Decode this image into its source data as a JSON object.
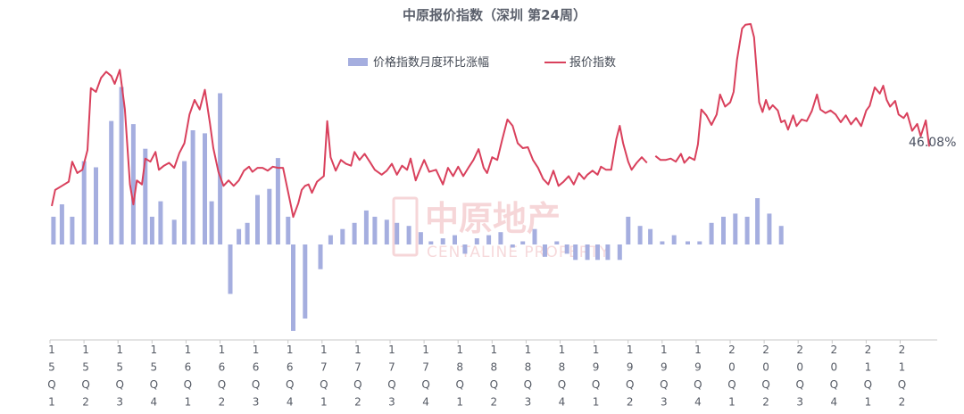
{
  "chart_data": {
    "type": "bar+line",
    "title": "中原报价指数（深圳 第24周）",
    "legend": {
      "position": "top-center",
      "items": [
        {
          "name": "价格指数月度环比涨幅",
          "kind": "bar",
          "color": "#a5aedf"
        },
        {
          "name": "报价指数",
          "kind": "line",
          "color": "#d9405c"
        }
      ]
    },
    "end_label": "46.08%",
    "watermark": {
      "cn": "中原地产",
      "en": "CENTALINE PROPERTY"
    },
    "quarters": [
      {
        "label": [
          "1",
          "5",
          "Q",
          "1"
        ],
        "x": 0
      },
      {
        "label": [
          "1",
          "5",
          "Q",
          "2"
        ],
        "x": 1
      },
      {
        "label": [
          "1",
          "5",
          "Q",
          "3"
        ],
        "x": 2
      },
      {
        "label": [
          "1",
          "5",
          "Q",
          "4"
        ],
        "x": 3
      },
      {
        "label": [
          "1",
          "6",
          "Q",
          "1"
        ],
        "x": 4
      },
      {
        "label": [
          "1",
          "6",
          "Q",
          "2"
        ],
        "x": 5
      },
      {
        "label": [
          "1",
          "6",
          "Q",
          "3"
        ],
        "x": 6
      },
      {
        "label": [
          "1",
          "6",
          "Q",
          "4"
        ],
        "x": 7
      },
      {
        "label": [
          "1",
          "7",
          "Q",
          "1"
        ],
        "x": 8
      },
      {
        "label": [
          "1",
          "7",
          "Q",
          "2"
        ],
        "x": 9
      },
      {
        "label": [
          "1",
          "7",
          "Q",
          "3"
        ],
        "x": 10
      },
      {
        "label": [
          "1",
          "7",
          "Q",
          "4"
        ],
        "x": 11
      },
      {
        "label": [
          "1",
          "8",
          "Q",
          "1"
        ],
        "x": 12
      },
      {
        "label": [
          "1",
          "8",
          "Q",
          "2"
        ],
        "x": 13
      },
      {
        "label": [
          "1",
          "8",
          "Q",
          "3"
        ],
        "x": 14
      },
      {
        "label": [
          "1",
          "8",
          "Q",
          "4"
        ],
        "x": 15
      },
      {
        "label": [
          "1",
          "9",
          "Q",
          "1"
        ],
        "x": 16
      },
      {
        "label": [
          "1",
          "9",
          "Q",
          "2"
        ],
        "x": 17
      },
      {
        "label": [
          "1",
          "9",
          "Q",
          "3"
        ],
        "x": 18
      },
      {
        "label": [
          "1",
          "9",
          "Q",
          "4"
        ],
        "x": 19
      },
      {
        "label": [
          "2",
          "0",
          "Q",
          "1"
        ],
        "x": 20
      },
      {
        "label": [
          "2",
          "0",
          "Q",
          "2"
        ],
        "x": 21
      },
      {
        "label": [
          "2",
          "0",
          "Q",
          "3"
        ],
        "x": 22
      },
      {
        "label": [
          "2",
          "0",
          "Q",
          "4"
        ],
        "x": 23
      },
      {
        "label": [
          "2",
          "1",
          "Q",
          "1"
        ],
        "x": 24
      },
      {
        "label": [
          "2",
          "1",
          "Q",
          "2"
        ],
        "x": 25
      }
    ],
    "x_range": [
      0,
      24.7
    ],
    "bar_axis": {
      "range": [
        -3.5,
        5.5
      ]
    },
    "line_axis": {
      "range": [
        0,
        100
      ]
    },
    "bars": [
      {
        "x": 0.05,
        "v": 0.9
      },
      {
        "x": 0.3,
        "v": 1.3
      },
      {
        "x": 0.6,
        "v": 0.9
      },
      {
        "x": 0.95,
        "v": 2.7
      },
      {
        "x": 1.3,
        "v": 2.5
      },
      {
        "x": 1.75,
        "v": 4.0
      },
      {
        "x": 2.05,
        "v": 5.1
      },
      {
        "x": 2.4,
        "v": 3.9
      },
      {
        "x": 2.75,
        "v": 3.1
      },
      {
        "x": 2.95,
        "v": 0.9
      },
      {
        "x": 3.2,
        "v": 1.4
      },
      {
        "x": 3.6,
        "v": 0.8
      },
      {
        "x": 3.9,
        "v": 2.7
      },
      {
        "x": 4.15,
        "v": 3.7
      },
      {
        "x": 4.5,
        "v": 3.6
      },
      {
        "x": 4.7,
        "v": 1.4
      },
      {
        "x": 4.95,
        "v": 4.9
      },
      {
        "x": 5.25,
        "v": -1.6
      },
      {
        "x": 5.5,
        "v": 0.5
      },
      {
        "x": 5.75,
        "v": 0.7
      },
      {
        "x": 6.05,
        "v": 1.6
      },
      {
        "x": 6.4,
        "v": 1.8
      },
      {
        "x": 6.65,
        "v": 2.8
      },
      {
        "x": 6.95,
        "v": 0.9
      },
      {
        "x": 7.1,
        "v": -2.8
      },
      {
        "x": 7.45,
        "v": -2.4
      },
      {
        "x": 7.9,
        "v": -0.8
      },
      {
        "x": 8.2,
        "v": 0.3
      },
      {
        "x": 8.55,
        "v": 0.5
      },
      {
        "x": 8.9,
        "v": 0.7
      },
      {
        "x": 9.25,
        "v": 1.1
      },
      {
        "x": 9.5,
        "v": 0.9
      },
      {
        "x": 9.85,
        "v": 0.8
      },
      {
        "x": 10.15,
        "v": 0.7
      },
      {
        "x": 10.5,
        "v": 0.6
      },
      {
        "x": 10.85,
        "v": 0.4
      },
      {
        "x": 11.15,
        "v": 0.1
      },
      {
        "x": 11.5,
        "v": 0.2
      },
      {
        "x": 11.85,
        "v": 0.3
      },
      {
        "x": 12.15,
        "v": -0.3
      },
      {
        "x": 12.5,
        "v": 0.2
      },
      {
        "x": 12.85,
        "v": 0.3
      },
      {
        "x": 13.2,
        "v": 0.4
      },
      {
        "x": 13.55,
        "v": -0.1
      },
      {
        "x": 13.85,
        "v": 0.1
      },
      {
        "x": 14.2,
        "v": 0.5
      },
      {
        "x": 14.5,
        "v": -0.4
      },
      {
        "x": 14.85,
        "v": 0.1
      },
      {
        "x": 15.15,
        "v": -0.3
      },
      {
        "x": 15.4,
        "v": -0.5
      },
      {
        "x": 15.75,
        "v": -0.5
      },
      {
        "x": 16.05,
        "v": -0.5
      },
      {
        "x": 16.35,
        "v": -0.5
      },
      {
        "x": 16.7,
        "v": -0.5
      },
      {
        "x": 16.95,
        "v": 0.9
      },
      {
        "x": 17.3,
        "v": 0.6
      },
      {
        "x": 17.6,
        "v": 0.5
      },
      {
        "x": 17.95,
        "v": 0.1
      },
      {
        "x": 18.3,
        "v": 0.3
      },
      {
        "x": 18.7,
        "v": 0.1
      },
      {
        "x": 19.05,
        "v": 0.1
      },
      {
        "x": 19.4,
        "v": 0.7
      },
      {
        "x": 19.75,
        "v": 0.9
      },
      {
        "x": 20.1,
        "v": 1.0
      },
      {
        "x": 20.45,
        "v": 0.9
      },
      {
        "x": 20.75,
        "v": 1.5
      },
      {
        "x": 21.1,
        "v": 1.0
      },
      {
        "x": 21.45,
        "v": 0.6
      }
    ],
    "line": [
      [
        0.0,
        22.2
      ],
      [
        0.1,
        29.0
      ],
      [
        0.3,
        30.7
      ],
      [
        0.5,
        32.5
      ],
      [
        0.6,
        40.9
      ],
      [
        0.75,
        36.1
      ],
      [
        0.8,
        36.6
      ],
      [
        0.9,
        37.5
      ],
      [
        1.05,
        45.8
      ],
      [
        1.15,
        71.9
      ],
      [
        1.3,
        70.3
      ],
      [
        1.45,
        76.2
      ],
      [
        1.6,
        78.8
      ],
      [
        1.75,
        77.0
      ],
      [
        1.85,
        73.7
      ],
      [
        2.0,
        79.6
      ],
      [
        2.15,
        63.0
      ],
      [
        2.3,
        31.3
      ],
      [
        2.4,
        22.9
      ],
      [
        2.5,
        33.0
      ],
      [
        2.65,
        31.3
      ],
      [
        2.75,
        42.2
      ],
      [
        2.9,
        40.9
      ],
      [
        3.05,
        45.0
      ],
      [
        3.15,
        37.5
      ],
      [
        3.3,
        39.2
      ],
      [
        3.45,
        40.4
      ],
      [
        3.6,
        38.3
      ],
      [
        3.75,
        44.5
      ],
      [
        3.9,
        48.7
      ],
      [
        4.05,
        60.8
      ],
      [
        4.2,
        66.9
      ],
      [
        4.35,
        62.9
      ],
      [
        4.5,
        71.2
      ],
      [
        4.65,
        57.1
      ],
      [
        4.75,
        46.6
      ],
      [
        4.9,
        36.6
      ],
      [
        5.05,
        30.7
      ],
      [
        5.2,
        33.0
      ],
      [
        5.35,
        30.7
      ],
      [
        5.5,
        33.0
      ],
      [
        5.65,
        37.1
      ],
      [
        5.8,
        38.8
      ],
      [
        5.9,
        36.6
      ],
      [
        6.05,
        38.3
      ],
      [
        6.2,
        38.3
      ],
      [
        6.35,
        37.1
      ],
      [
        6.5,
        38.8
      ],
      [
        6.65,
        38.3
      ],
      [
        6.8,
        38.3
      ],
      [
        7.05,
        21.2
      ],
      [
        7.1,
        17.6
      ],
      [
        7.25,
        23.4
      ],
      [
        7.35,
        29.0
      ],
      [
        7.45,
        30.7
      ],
      [
        7.55,
        31.3
      ],
      [
        7.65,
        27.8
      ],
      [
        7.8,
        32.5
      ],
      [
        8.0,
        34.8
      ],
      [
        8.1,
        58.0
      ],
      [
        8.2,
        42.8
      ],
      [
        8.35,
        37.1
      ],
      [
        8.5,
        41.6
      ],
      [
        8.65,
        40.0
      ],
      [
        8.8,
        39.2
      ],
      [
        8.9,
        45.0
      ],
      [
        9.05,
        41.6
      ],
      [
        9.2,
        44.2
      ],
      [
        9.35,
        40.9
      ],
      [
        9.5,
        37.5
      ],
      [
        9.7,
        35.4
      ],
      [
        9.85,
        37.1
      ],
      [
        10.0,
        40.0
      ],
      [
        10.15,
        35.4
      ],
      [
        10.3,
        39.2
      ],
      [
        10.45,
        37.5
      ],
      [
        10.55,
        42.2
      ],
      [
        10.7,
        33.0
      ],
      [
        10.8,
        36.6
      ],
      [
        10.95,
        41.6
      ],
      [
        11.1,
        36.6
      ],
      [
        11.3,
        37.5
      ],
      [
        11.5,
        31.3
      ],
      [
        11.65,
        38.3
      ],
      [
        11.8,
        34.8
      ],
      [
        11.95,
        38.8
      ],
      [
        12.1,
        34.8
      ],
      [
        12.25,
        38.3
      ],
      [
        12.4,
        41.6
      ],
      [
        12.55,
        46.2
      ],
      [
        12.7,
        38.3
      ],
      [
        12.8,
        36.1
      ],
      [
        12.95,
        42.8
      ],
      [
        13.1,
        41.6
      ],
      [
        13.25,
        50.4
      ],
      [
        13.4,
        58.7
      ],
      [
        13.55,
        56.0
      ],
      [
        13.7,
        48.7
      ],
      [
        13.85,
        46.6
      ],
      [
        14.0,
        47.0
      ],
      [
        14.15,
        41.6
      ],
      [
        14.3,
        38.3
      ],
      [
        14.45,
        33.6
      ],
      [
        14.6,
        31.3
      ],
      [
        14.75,
        37.1
      ],
      [
        14.9,
        30.7
      ],
      [
        15.05,
        32.5
      ],
      [
        15.2,
        34.8
      ],
      [
        15.35,
        31.3
      ],
      [
        15.5,
        36.1
      ],
      [
        15.65,
        33.6
      ],
      [
        15.75,
        35.4
      ],
      [
        15.9,
        37.1
      ],
      [
        16.05,
        35.4
      ],
      [
        16.15,
        38.8
      ],
      [
        16.3,
        37.5
      ],
      [
        16.45,
        37.5
      ],
      [
        16.6,
        50.4
      ],
      [
        16.7,
        56.0
      ],
      [
        16.8,
        48.7
      ],
      [
        16.95,
        40.9
      ],
      [
        17.05,
        37.5
      ],
      [
        17.2,
        40.4
      ],
      [
        17.35,
        42.8
      ],
      [
        17.5,
        40.4
      ],
      [
        17.6,
        null
      ],
      [
        17.75,
        43.3
      ],
      [
        17.9,
        41.6
      ],
      [
        18.05,
        41.6
      ],
      [
        18.2,
        42.2
      ],
      [
        18.35,
        40.9
      ],
      [
        18.5,
        44.2
      ],
      [
        18.6,
        40.4
      ],
      [
        18.75,
        42.8
      ],
      [
        18.9,
        41.6
      ],
      [
        19.0,
        48.2
      ],
      [
        19.1,
        62.9
      ],
      [
        19.25,
        60.4
      ],
      [
        19.4,
        56.4
      ],
      [
        19.55,
        60.8
      ],
      [
        19.65,
        69.2
      ],
      [
        19.8,
        64.1
      ],
      [
        19.95,
        65.9
      ],
      [
        20.05,
        70.3
      ],
      [
        20.15,
        83.9
      ],
      [
        20.3,
        97.0
      ],
      [
        20.4,
        98.6
      ],
      [
        20.55,
        98.9
      ],
      [
        20.65,
        93.3
      ],
      [
        20.8,
        65.9
      ],
      [
        20.9,
        61.8
      ],
      [
        21.0,
        66.9
      ],
      [
        21.1,
        62.9
      ],
      [
        21.2,
        64.7
      ],
      [
        21.35,
        62.5
      ],
      [
        21.45,
        57.5
      ],
      [
        21.55,
        58.3
      ],
      [
        21.65,
        54.4
      ],
      [
        21.8,
        60.4
      ],
      [
        21.9,
        55.9
      ],
      [
        22.05,
        58.7
      ],
      [
        22.2,
        58.0
      ],
      [
        22.35,
        62.2
      ],
      [
        22.5,
        69.2
      ],
      [
        22.6,
        62.9
      ],
      [
        22.75,
        61.4
      ],
      [
        22.9,
        62.5
      ],
      [
        23.05,
        60.8
      ],
      [
        23.2,
        57.5
      ],
      [
        23.35,
        60.4
      ],
      [
        23.5,
        56.6
      ],
      [
        23.65,
        59.3
      ],
      [
        23.8,
        55.9
      ],
      [
        23.95,
        62.5
      ],
      [
        24.05,
        64.4
      ],
      [
        24.2,
        72.2
      ],
      [
        24.35,
        69.6
      ],
      [
        24.45,
        72.9
      ],
      [
        24.55,
        66.9
      ],
      [
        24.65,
        64.1
      ],
      [
        24.8,
        66.5
      ],
      [
        24.9,
        60.8
      ],
      [
        25.05,
        59.3
      ],
      [
        25.15,
        61.4
      ],
      [
        25.3,
        53.9
      ],
      [
        25.45,
        56.8
      ],
      [
        25.55,
        51.6
      ],
      [
        25.7,
        58.3
      ],
      [
        25.8,
        47.3
      ]
    ]
  }
}
